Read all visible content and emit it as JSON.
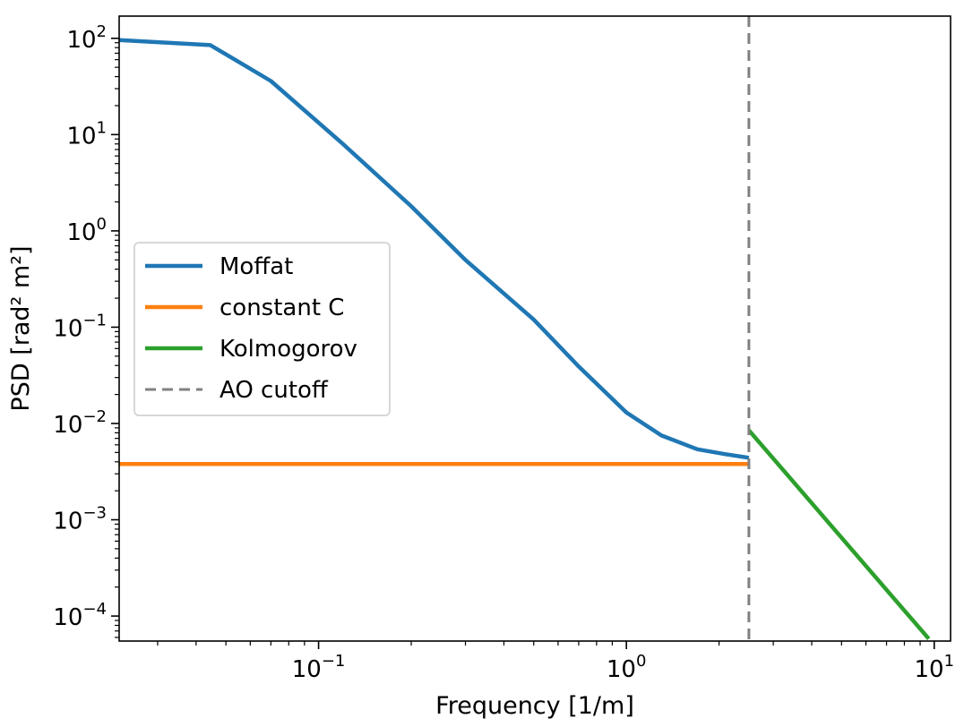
{
  "chart_data": {
    "type": "line",
    "title": "",
    "xlabel": "Frequency [1/m]",
    "ylabel": "PSD [rad² m²]",
    "xscale": "log",
    "yscale": "log",
    "xlim": [
      0.0225,
      11.3
    ],
    "ylim": [
      5.5e-05,
      170
    ],
    "xticks": [
      {
        "value": 0.1,
        "base": "10",
        "exp": "−1"
      },
      {
        "value": 1,
        "base": "10",
        "exp": "0"
      },
      {
        "value": 10,
        "base": "10",
        "exp": "1"
      }
    ],
    "yticks": [
      {
        "value": 0.0001,
        "base": "10",
        "exp": "−4"
      },
      {
        "value": 0.001,
        "base": "10",
        "exp": "−3"
      },
      {
        "value": 0.01,
        "base": "10",
        "exp": "−2"
      },
      {
        "value": 0.1,
        "base": "10",
        "exp": "−1"
      },
      {
        "value": 1,
        "base": "10",
        "exp": "0"
      },
      {
        "value": 10,
        "base": "10",
        "exp": "1"
      },
      {
        "value": 100,
        "base": "10",
        "exp": "2"
      }
    ],
    "legend_position": "center-left",
    "series": [
      {
        "name": "Moffat",
        "color": "#1f77b4",
        "style": "solid",
        "x": [
          0.0225,
          0.0445,
          0.07,
          0.12,
          0.2,
          0.3,
          0.5,
          0.7,
          1.0,
          1.3,
          1.7,
          2.1,
          2.5
        ],
        "y": [
          96,
          85,
          36,
          8.0,
          1.8,
          0.5,
          0.12,
          0.039,
          0.013,
          0.0075,
          0.0054,
          0.0048,
          0.0044
        ]
      },
      {
        "name": "constant C",
        "color": "#ff7f0e",
        "style": "solid",
        "x": [
          0.0225,
          2.5
        ],
        "y": [
          0.0038,
          0.0038
        ]
      },
      {
        "name": "Kolmogorov",
        "color": "#2ca02c",
        "style": "solid",
        "x": [
          2.5,
          9.6
        ],
        "y": [
          0.0085,
          5.8e-05
        ]
      },
      {
        "name": "AO cutoff",
        "color": "#808080",
        "style": "dashed",
        "vline_x": 2.5
      }
    ]
  }
}
